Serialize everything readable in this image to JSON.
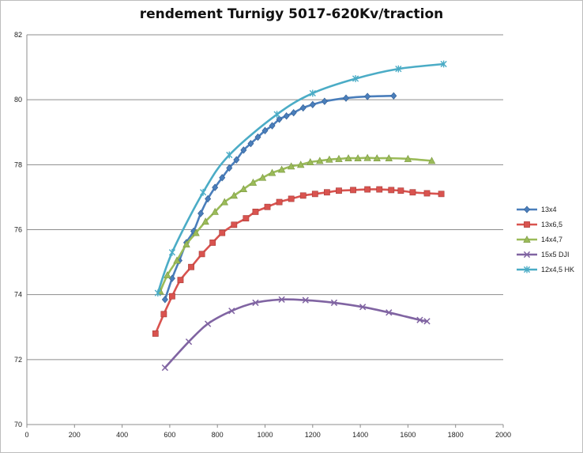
{
  "chart_data": {
    "type": "line",
    "title": "rendement Turnigy 5017-620Kv/traction",
    "xlabel": "",
    "ylabel": "",
    "xlim": [
      0,
      2000
    ],
    "ylim": [
      70,
      82
    ],
    "x_ticks": [
      "0",
      "200",
      "400",
      "600",
      "800",
      "1000",
      "1200",
      "1400",
      "1600",
      "1800",
      "2000"
    ],
    "y_ticks": [
      "70",
      "72",
      "74",
      "76",
      "78",
      "80",
      "82"
    ],
    "grid": "horizontal",
    "legend_position": "right",
    "series": [
      {
        "name": "13x4",
        "color": "#4a7ebb",
        "marker": "diamond",
        "points": [
          [
            580,
            73.85
          ],
          [
            610,
            74.5
          ],
          [
            640,
            75.05
          ],
          [
            670,
            75.6
          ],
          [
            700,
            75.95
          ],
          [
            730,
            76.5
          ],
          [
            760,
            76.95
          ],
          [
            790,
            77.3
          ],
          [
            820,
            77.6
          ],
          [
            850,
            77.9
          ],
          [
            880,
            78.15
          ],
          [
            910,
            78.45
          ],
          [
            940,
            78.65
          ],
          [
            970,
            78.85
          ],
          [
            1000,
            79.05
          ],
          [
            1030,
            79.2
          ],
          [
            1060,
            79.4
          ],
          [
            1090,
            79.5
          ],
          [
            1120,
            79.6
          ],
          [
            1160,
            79.75
          ],
          [
            1200,
            79.85
          ],
          [
            1250,
            79.95
          ],
          [
            1340,
            80.05
          ],
          [
            1430,
            80.1
          ],
          [
            1540,
            80.12
          ]
        ]
      },
      {
        "name": "13x6,5",
        "color": "#d9534f",
        "marker": "square",
        "points": [
          [
            540,
            72.8
          ],
          [
            575,
            73.4
          ],
          [
            610,
            73.95
          ],
          [
            645,
            74.45
          ],
          [
            690,
            74.85
          ],
          [
            735,
            75.25
          ],
          [
            780,
            75.6
          ],
          [
            820,
            75.9
          ],
          [
            870,
            76.15
          ],
          [
            920,
            76.35
          ],
          [
            960,
            76.55
          ],
          [
            1010,
            76.7
          ],
          [
            1060,
            76.85
          ],
          [
            1110,
            76.95
          ],
          [
            1160,
            77.05
          ],
          [
            1210,
            77.1
          ],
          [
            1260,
            77.15
          ],
          [
            1310,
            77.2
          ],
          [
            1370,
            77.22
          ],
          [
            1430,
            77.24
          ],
          [
            1480,
            77.24
          ],
          [
            1530,
            77.22
          ],
          [
            1570,
            77.2
          ],
          [
            1620,
            77.15
          ],
          [
            1680,
            77.12
          ],
          [
            1740,
            77.1
          ]
        ]
      },
      {
        "name": "14x4,7",
        "color": "#9bbb59",
        "marker": "triangle",
        "points": [
          [
            560,
            74.1
          ],
          [
            590,
            74.6
          ],
          [
            630,
            75.05
          ],
          [
            670,
            75.55
          ],
          [
            710,
            75.9
          ],
          [
            750,
            76.25
          ],
          [
            790,
            76.55
          ],
          [
            830,
            76.85
          ],
          [
            870,
            77.05
          ],
          [
            910,
            77.25
          ],
          [
            950,
            77.45
          ],
          [
            990,
            77.6
          ],
          [
            1030,
            77.75
          ],
          [
            1070,
            77.85
          ],
          [
            1110,
            77.95
          ],
          [
            1150,
            78.0
          ],
          [
            1190,
            78.08
          ],
          [
            1230,
            78.12
          ],
          [
            1270,
            78.16
          ],
          [
            1310,
            78.18
          ],
          [
            1350,
            78.2
          ],
          [
            1390,
            78.2
          ],
          [
            1430,
            78.21
          ],
          [
            1470,
            78.2
          ],
          [
            1520,
            78.2
          ],
          [
            1600,
            78.18
          ],
          [
            1700,
            78.12
          ]
        ]
      },
      {
        "name": "15x5 DJI",
        "color": "#8064a2",
        "marker": "x",
        "points": [
          [
            580,
            71.75
          ],
          [
            680,
            72.55
          ],
          [
            760,
            73.1
          ],
          [
            860,
            73.5
          ],
          [
            960,
            73.75
          ],
          [
            1070,
            73.85
          ],
          [
            1170,
            73.83
          ],
          [
            1290,
            73.75
          ],
          [
            1410,
            73.62
          ],
          [
            1520,
            73.45
          ],
          [
            1650,
            73.22
          ],
          [
            1680,
            73.18
          ]
        ]
      },
      {
        "name": "12x4,5 HK",
        "color": "#4bacc6",
        "marker": "asterisk",
        "points": [
          [
            550,
            74.05
          ],
          [
            610,
            75.3
          ],
          [
            740,
            77.15
          ],
          [
            850,
            78.3
          ],
          [
            1050,
            79.55
          ],
          [
            1200,
            80.2
          ],
          [
            1380,
            80.65
          ],
          [
            1560,
            80.95
          ],
          [
            1750,
            81.1
          ]
        ]
      }
    ]
  }
}
